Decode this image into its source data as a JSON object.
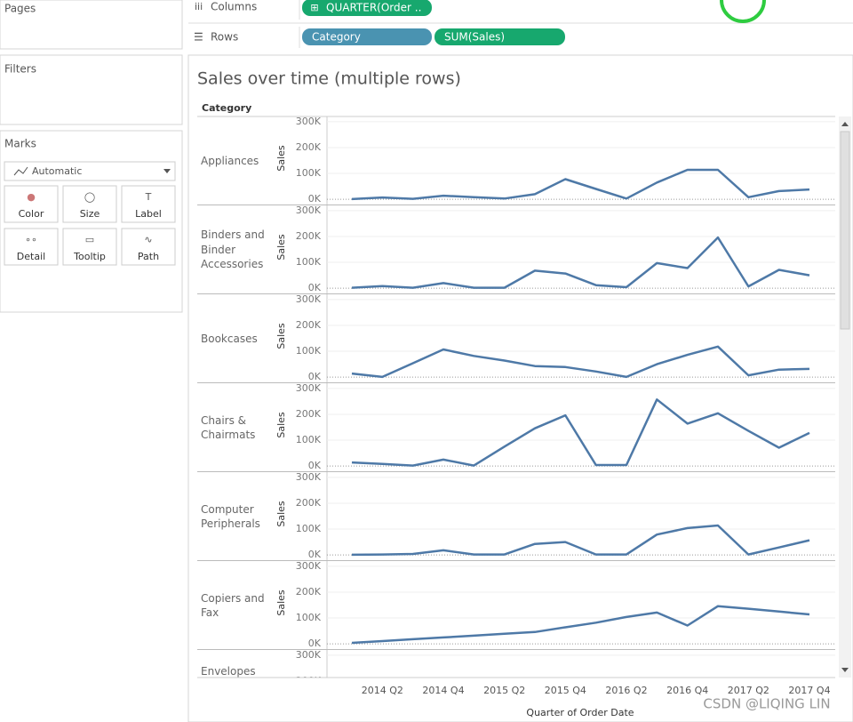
{
  "ui": {
    "pages": "Pages",
    "filters": "Filters",
    "marks": "Marks",
    "mark_type": "Automatic",
    "mark_buttons": [
      "Color",
      "Size",
      "Label",
      "Detail",
      "Tooltip",
      "Path"
    ],
    "columns_label": "Columns",
    "rows_label": "Rows",
    "columns_pills": [
      "QUARTER(Order .."
    ],
    "rows_pills": [
      "Category",
      "SUM(Sales)"
    ],
    "watermark": "CSDN @LIQING LIN"
  },
  "chart_data": {
    "type": "line",
    "title": "Sales over time (multiple rows)",
    "facet_label": "Category",
    "y_label": "Sales",
    "x_label": "Quarter of Order Date",
    "color": "#4e79a7",
    "categories": [
      null,
      "2014 Q2",
      null,
      "2014 Q4",
      null,
      "2015 Q2",
      null,
      "2015 Q4",
      null,
      "2016 Q2",
      null,
      "2016 Q4",
      null,
      "2017 Q2",
      null,
      "2017 Q4"
    ],
    "series": [
      {
        "name": "Appliances",
        "values": [
          1000,
          7000,
          2000,
          14000,
          8000,
          3000,
          20000,
          78000,
          40000,
          3000,
          65000,
          114000,
          114000,
          8000,
          32000,
          38000
        ]
      },
      {
        "name": "Binders and Binder Accessories",
        "values": [
          2000,
          8000,
          2000,
          20000,
          2000,
          2000,
          68000,
          57000,
          12000,
          4000,
          97000,
          78000,
          196000,
          7000,
          71000,
          50000
        ]
      },
      {
        "name": "Bookcases",
        "values": [
          14000,
          1000,
          54000,
          107000,
          82000,
          64000,
          43000,
          39000,
          22000,
          1000,
          50000,
          86000,
          118000,
          7000,
          29000,
          32000
        ]
      },
      {
        "name": "Chairs & Chairmats",
        "values": [
          14000,
          8000,
          2000,
          25000,
          2000,
          75000,
          146000,
          196000,
          4000,
          4000,
          257000,
          164000,
          204000,
          136000,
          71000,
          128000
        ]
      },
      {
        "name": "Computer Peripherals",
        "values": [
          1000,
          2000,
          4000,
          18000,
          2000,
          2000,
          43000,
          50000,
          2000,
          2000,
          79000,
          104000,
          114000,
          2000,
          29000,
          57000
        ]
      },
      {
        "name": "Copiers and Fax",
        "values": [
          4000,
          11000,
          18000,
          25000,
          32000,
          39000,
          46000,
          64000,
          82000,
          104000,
          121000,
          71000,
          146000,
          136000,
          125000,
          114000
        ]
      },
      {
        "name": "Envelopes",
        "values": [
          null,
          null,
          null,
          null,
          null,
          null,
          null,
          null,
          null,
          null,
          null,
          null,
          null,
          null,
          null,
          null
        ]
      }
    ],
    "ylim": [
      -20000,
      320000
    ],
    "yticks": [
      {
        "value": 0,
        "label": "0K"
      },
      {
        "value": 100000,
        "label": "100K"
      },
      {
        "value": 200000,
        "label": "200K"
      },
      {
        "value": 300000,
        "label": "300K"
      }
    ],
    "grid": true
  }
}
